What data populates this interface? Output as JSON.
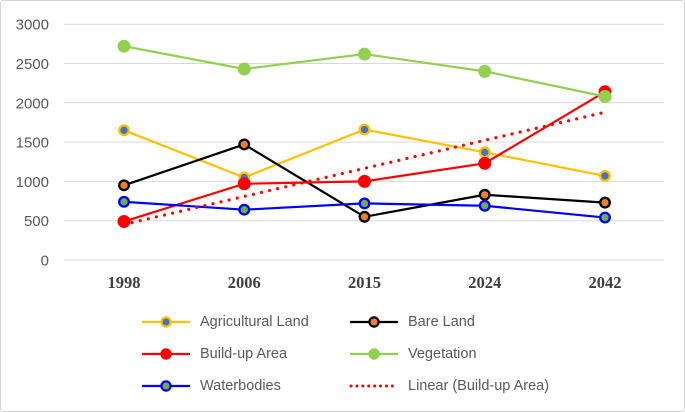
{
  "figure": {
    "background": "#ffffff",
    "border_color": "#d5d5d5"
  },
  "chart_data": {
    "type": "line",
    "title": "",
    "xlabel": "",
    "ylabel": "",
    "categories": [
      "1998",
      "2006",
      "2015",
      "2024",
      "2042"
    ],
    "series": [
      {
        "name": "Agricultural Land",
        "values": [
          1650,
          1050,
          1660,
          1370,
          1070
        ],
        "line_color": "#FFC000",
        "marker_fill": "#4472C4",
        "marker_stroke": "#FFC000",
        "marker_style": "ring",
        "line_style": "solid"
      },
      {
        "name": "Bare Land",
        "values": [
          950,
          1470,
          550,
          830,
          730
        ],
        "line_color": "#000000",
        "marker_fill": "#ED7D31",
        "marker_stroke": "#000000",
        "marker_style": "ring",
        "line_style": "solid"
      },
      {
        "name": "Build-up Area",
        "values": [
          490,
          970,
          1000,
          1230,
          2140
        ],
        "line_color": "#FF0000",
        "marker_fill": "#FF0000",
        "marker_stroke": "#FF0000",
        "marker_style": "solid",
        "line_style": "solid"
      },
      {
        "name": "Vegetation",
        "values": [
          2720,
          2430,
          2620,
          2400,
          2080
        ],
        "line_color": "#92D050",
        "marker_fill": "#92D050",
        "marker_stroke": "#92D050",
        "marker_style": "solid",
        "line_style": "solid"
      },
      {
        "name": "Waterbodies",
        "values": [
          740,
          640,
          720,
          690,
          540
        ],
        "line_color": "#0000FF",
        "marker_fill": "#70AD47",
        "marker_stroke": "#0000FF",
        "marker_style": "ring",
        "line_style": "solid"
      }
    ],
    "trendline": {
      "name": "Linear (Build-up Area)",
      "start_value": 452,
      "end_value": 1880,
      "color": "#FF0000",
      "line_style": "dotted"
    },
    "y_axis": {
      "min": 0,
      "max": 3000,
      "step": 500,
      "tick_labels": [
        "0",
        "500",
        "1000",
        "1500",
        "2000",
        "2500",
        "3000"
      ],
      "label_color": "#595959"
    },
    "x_axis": {
      "tick_labels": [
        "1998",
        "2006",
        "2015",
        "2024",
        "2042"
      ],
      "label_color": "#3F3F3F"
    },
    "grid": true,
    "gridline_color": "#D9D9D9",
    "legend_position": "bottom"
  },
  "legend": {
    "items": [
      {
        "label": "Agricultural Land",
        "swatch": "line-marker",
        "line_color": "#FFC000",
        "marker_fill": "#4472C4",
        "marker_stroke": "#FFC000"
      },
      {
        "label": "Bare Land",
        "swatch": "line-marker",
        "line_color": "#000000",
        "marker_fill": "#ED7D31",
        "marker_stroke": "#000000"
      },
      {
        "label": "Build-up Area",
        "swatch": "line-marker",
        "line_color": "#FF0000",
        "marker_fill": "#FF0000",
        "marker_stroke": "#FF0000"
      },
      {
        "label": "Vegetation",
        "swatch": "line-marker",
        "line_color": "#92D050",
        "marker_fill": "#92D050",
        "marker_stroke": "#92D050"
      },
      {
        "label": "Waterbodies",
        "swatch": "line-marker",
        "line_color": "#0000FF",
        "marker_fill": "#70AD47",
        "marker_stroke": "#0000FF"
      },
      {
        "label": "Linear (Build-up Area)",
        "swatch": "dotted-line",
        "line_color": "#FF0000"
      }
    ]
  }
}
